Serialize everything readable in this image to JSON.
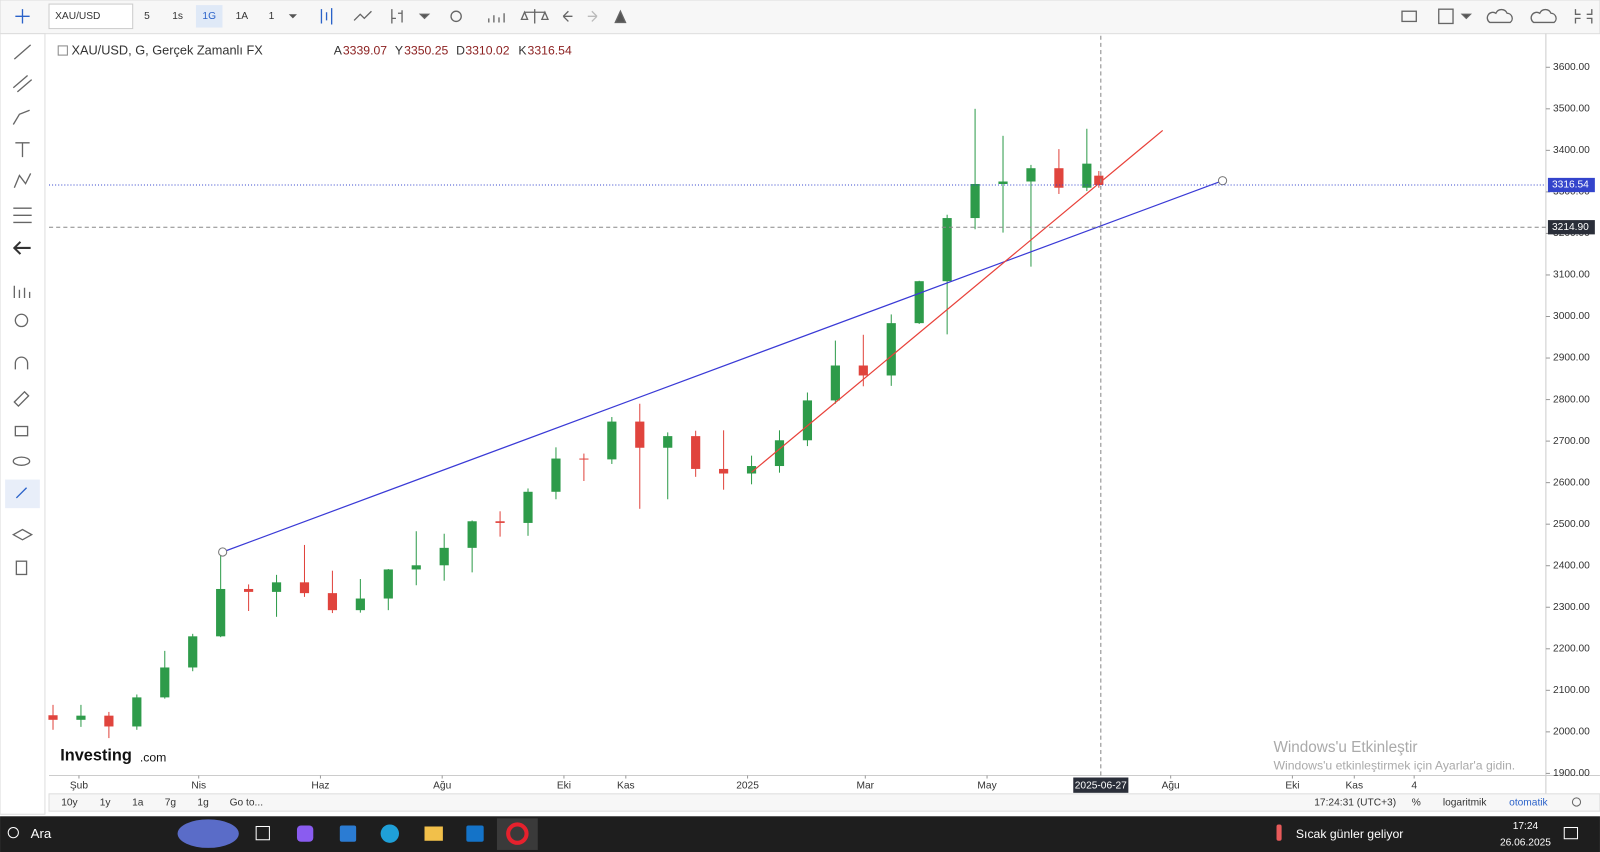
{
  "toolbar": {
    "symbol": "XAU/USD",
    "intervals": [
      "5",
      "1s",
      "1G",
      "1A",
      "1"
    ]
  },
  "chart_data": {
    "type": "candlestick",
    "title": "XAU/USD, G, Gerçek Zamanlı FX",
    "ohlc_labels": [
      "A",
      "Y",
      "D",
      "K"
    ],
    "up_color": "#2e9b4a",
    "down_color": "#e0443d",
    "candles": {
      "x": [
        "2024-01-19",
        "2024-02-02",
        "2024-02-16",
        "2024-03-01",
        "2024-03-15",
        "2024-03-29",
        "2024-04-12",
        "2024-04-26",
        "2024-05-10",
        "2024-05-24",
        "2024-06-07",
        "2024-06-21",
        "2024-07-05",
        "2024-07-19",
        "2024-08-02",
        "2024-08-16",
        "2024-08-30",
        "2024-09-13",
        "2024-09-27",
        "2024-10-11",
        "2024-10-25",
        "2024-11-08",
        "2024-11-22",
        "2024-12-06",
        "2024-12-20",
        "2025-01-03",
        "2025-01-17",
        "2025-01-31",
        "2025-02-14",
        "2025-02-28",
        "2025-03-14",
        "2025-03-28",
        "2025-04-11",
        "2025-04-25",
        "2025-05-09",
        "2025-05-23",
        "2025-06-06",
        "2025-06-20",
        "2025-06-26"
      ],
      "open": [
        2040,
        2029,
        2039,
        2013,
        2083,
        2155,
        2230,
        2344,
        2337,
        2360,
        2334,
        2293,
        2321,
        2391,
        2401,
        2443,
        2507,
        2503,
        2578,
        2658,
        2656,
        2747,
        2684,
        2712,
        2633,
        2622,
        2640,
        2702,
        2798,
        2882,
        2858,
        2984,
        3085,
        3237,
        3319,
        3325,
        3357,
        3310,
        3339.07
      ],
      "high": [
        2065,
        2065,
        2048,
        2090,
        2195,
        2236,
        2432,
        2355,
        2378,
        2450,
        2388,
        2368,
        2392,
        2483,
        2477,
        2509,
        2531,
        2586,
        2685,
        2670,
        2758,
        2790,
        2721,
        2725,
        2726,
        2665,
        2726,
        2817,
        2942,
        2956,
        3005,
        3086,
        3245,
        3500,
        3435,
        3365,
        3403,
        3452,
        3350.25
      ],
      "low": [
        2005,
        2012,
        1985,
        2005,
        2080,
        2146,
        2228,
        2291,
        2277,
        2325,
        2286,
        2287,
        2293,
        2353,
        2364,
        2384,
        2470,
        2472,
        2560,
        2604,
        2645,
        2537,
        2560,
        2614,
        2583,
        2596,
        2624,
        2688,
        2790,
        2832,
        2833,
        2982,
        2957,
        3210,
        3202,
        3120,
        3295,
        3302,
        3310.02
      ],
      "close": [
        2029,
        2039,
        2013,
        2083,
        2155,
        2230,
        2344,
        2337,
        2360,
        2334,
        2293,
        2321,
        2391,
        2401,
        2443,
        2507,
        2503,
        2578,
        2658,
        2656,
        2747,
        2684,
        2712,
        2633,
        2622,
        2640,
        2702,
        2798,
        2882,
        2858,
        2984,
        3085,
        3237,
        3319,
        3325,
        3357,
        3310,
        3368,
        3316.54
      ]
    },
    "xlim": [
      "2024-01-17",
      "2026-02-05"
    ],
    "xticks": [
      {
        "value": "2024-02-01",
        "label": "Şub"
      },
      {
        "value": "2024-04-01",
        "label": "Nis"
      },
      {
        "value": "2024-06-01",
        "label": "Haz"
      },
      {
        "value": "2024-08-01",
        "label": "Ağu"
      },
      {
        "value": "2024-10-01",
        "label": "Eki"
      },
      {
        "value": "2024-11-01",
        "label": "Kas"
      },
      {
        "value": "2025-01-01",
        "label": "2025"
      },
      {
        "value": "2025-03-01",
        "label": "Mar"
      },
      {
        "value": "2025-05-01",
        "label": "May"
      },
      {
        "value": "2025-08-01",
        "label": "Ağu"
      },
      {
        "value": "2025-10-01",
        "label": "Eki"
      },
      {
        "value": "2025-11-01",
        "label": "Kas"
      },
      {
        "value": "2025-12-01",
        "label": "4"
      }
    ],
    "ylim": [
      1895,
      3676
    ],
    "yticks": [
      {
        "value": 1900,
        "label": "1900.00"
      },
      {
        "value": 2000,
        "label": "2000.00"
      },
      {
        "value": 2100,
        "label": "2100.00"
      },
      {
        "value": 2200,
        "label": "2200.00"
      },
      {
        "value": 2300,
        "label": "2300.00"
      },
      {
        "value": 2400,
        "label": "2400.00"
      },
      {
        "value": 2500,
        "label": "2500.00"
      },
      {
        "value": 2600,
        "label": "2600.00"
      },
      {
        "value": 2700,
        "label": "2700.00"
      },
      {
        "value": 2800,
        "label": "2800.00"
      },
      {
        "value": 2900,
        "label": "2900.00"
      },
      {
        "value": 3000,
        "label": "3000.00"
      },
      {
        "value": 3100,
        "label": "3100.00"
      },
      {
        "value": 3200,
        "label": "3200.00"
      },
      {
        "value": 3300,
        "label": "3300.00"
      },
      {
        "value": 3400,
        "label": "3400.00"
      },
      {
        "value": 3500,
        "label": "3500.00"
      },
      {
        "value": 3600,
        "label": "3600.00"
      }
    ],
    "last_price_color": "#3344cc",
    "crosshair": {
      "x": "2025-06-27",
      "y": {
        "value": 3214.9,
        "label": "3214.90"
      }
    },
    "trendlines": [
      {
        "color": "#3a3ad6",
        "x": [
          "2024-04-13",
          "2025-08-27"
        ],
        "y": [
          2433,
          3327
        ]
      },
      {
        "color": "#e8413a",
        "x": [
          "2025-01-03",
          "2025-07-28"
        ],
        "y": [
          2625,
          3448
        ]
      }
    ]
  },
  "bottom_bar": {
    "ranges": [
      "10y",
      "1y",
      "1a",
      "7g",
      "1g"
    ],
    "goto": "Go to...",
    "time": "17:24:31 (UTC+3)",
    "percent": "%",
    "log": "logaritmik",
    "auto": "otomatik"
  },
  "logo": {
    "name": "Investing",
    "suffix": ".com"
  },
  "watermark": {
    "title": "Windows'u Etkinleştir",
    "subtitle": "Windows'u etkinleştirmek için Ayarlar'a gidin."
  },
  "taskbar": {
    "search": "Ara",
    "weather": "Sıcak günler geliyor",
    "time": "17:24",
    "date": "26.06.2025"
  }
}
